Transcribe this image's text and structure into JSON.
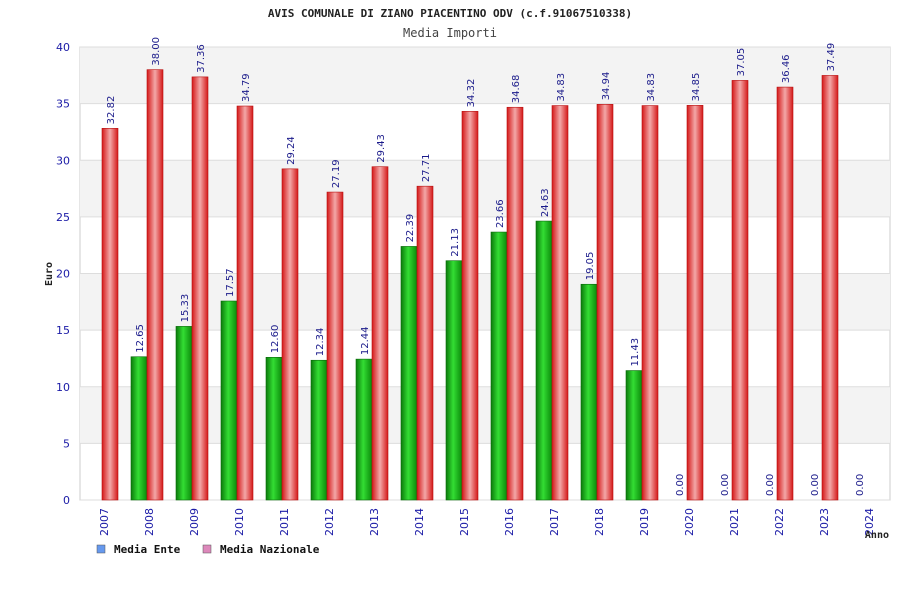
{
  "chart_data": {
    "type": "bar",
    "title": "AVIS COMUNALE DI ZIANO PIACENTINO ODV (c.f.91067510338)",
    "subtitle": "Media Importi",
    "ylabel": "Euro",
    "xlabel": "Anno",
    "ylim": [
      0,
      40
    ],
    "yticks": [
      "0",
      "5",
      "10",
      "15",
      "20",
      "25",
      "30",
      "35",
      "40"
    ],
    "categories": [
      "2007",
      "2008",
      "2009",
      "2010",
      "2011",
      "2012",
      "2013",
      "2014",
      "2015",
      "2016",
      "2017",
      "2018",
      "2019",
      "2020",
      "2021",
      "2022",
      "2023",
      "2024"
    ],
    "series": [
      {
        "name": "Media Ente",
        "color": "#22bb22",
        "values": [
          null,
          12.65,
          15.33,
          17.57,
          12.6,
          12.34,
          12.44,
          22.39,
          21.13,
          23.66,
          24.63,
          19.05,
          11.43,
          0.0,
          0.0,
          0.0,
          0.0,
          0.0
        ],
        "labels": [
          "",
          "12.65",
          "15.33",
          "17.57",
          "12.60",
          "12.34",
          "12.44",
          "22.39",
          "21.13",
          "23.66",
          "24.63",
          "19.05",
          "11.43",
          "0.00",
          "0.00",
          "0.00",
          "0.00",
          "0.00"
        ]
      },
      {
        "name": "Media Nazionale",
        "color": "#ee2222",
        "values": [
          32.82,
          38.0,
          37.36,
          34.79,
          29.24,
          27.19,
          29.43,
          27.71,
          34.32,
          34.68,
          34.83,
          34.94,
          34.83,
          34.85,
          37.05,
          36.46,
          37.49,
          null
        ],
        "labels": [
          "32.82",
          "38.00",
          "37.36",
          "34.79",
          "29.24",
          "27.19",
          "29.43",
          "27.71",
          "34.32",
          "34.68",
          "34.83",
          "34.94",
          "34.83",
          "34.85",
          "37.05",
          "36.46",
          "37.49",
          ""
        ]
      }
    ],
    "legend": {
      "placement": "bottom-left",
      "items": [
        {
          "label": "Media Ente",
          "color": "#6699ee"
        },
        {
          "label": "Media Nazionale",
          "color": "#dd88bb"
        }
      ]
    },
    "grid": true
  }
}
